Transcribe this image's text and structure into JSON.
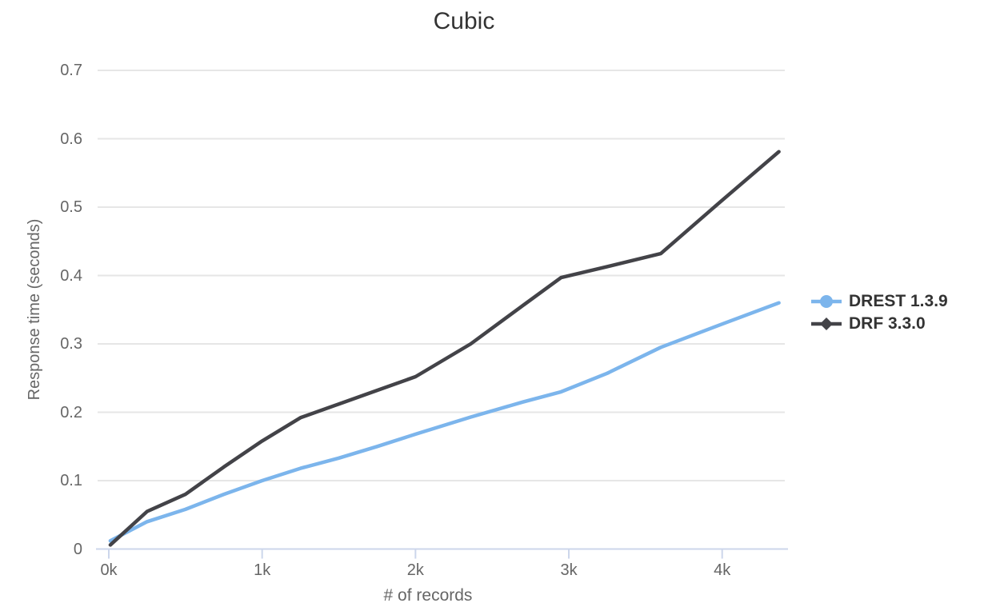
{
  "chart": {
    "title": "Cubic",
    "x_axis": {
      "title": "# of records",
      "ticks": [
        "0k",
        "1k",
        "2k",
        "3k",
        "4k"
      ]
    },
    "y_axis": {
      "title": "Response time (seconds)",
      "ticks": [
        "0",
        "0.1",
        "0.2",
        "0.3",
        "0.4",
        "0.5",
        "0.6",
        "0.7"
      ]
    },
    "legend": [
      {
        "label": "DREST 1.3.9",
        "color": "#7cb5ec",
        "marker": "circle"
      },
      {
        "label": "DRF 3.3.0",
        "color": "#434348",
        "marker": "diamond"
      }
    ]
  },
  "chart_data": {
    "type": "line",
    "title": "Cubic",
    "xlabel": "# of records",
    "ylabel": "Response time (seconds)",
    "xlim": [
      0,
      4420
    ],
    "ylim": [
      0,
      0.7
    ],
    "x_tick_values": [
      0,
      1000,
      2000,
      3000,
      4000
    ],
    "y_tick_values": [
      0,
      0.1,
      0.2,
      0.3,
      0.4,
      0.5,
      0.6,
      0.7
    ],
    "grid": "horizontal",
    "legend_position": "right",
    "x": [
      10,
      250,
      500,
      750,
      1000,
      1250,
      1500,
      1750,
      2000,
      2360,
      2700,
      2950,
      3250,
      3600,
      4000,
      4370
    ],
    "series": [
      {
        "name": "DREST 1.3.9",
        "color": "#7cb5ec",
        "marker": "circle",
        "values": [
          0.012,
          0.04,
          0.058,
          0.08,
          0.1,
          0.118,
          0.133,
          0.15,
          0.168,
          0.193,
          0.215,
          0.23,
          0.257,
          0.295,
          0.329,
          0.36
        ]
      },
      {
        "name": "DRF 3.3.0",
        "color": "#434348",
        "marker": "diamond",
        "values": [
          0.006,
          0.055,
          0.08,
          0.12,
          0.158,
          0.192,
          0.212,
          0.232,
          0.252,
          0.3,
          0.356,
          0.397,
          0.413,
          0.432,
          0.51,
          0.581
        ]
      }
    ]
  },
  "colors": {
    "series_blue": "#7cb5ec",
    "series_dark": "#434348",
    "gridline": "#e6e6e6",
    "axis_line": "#ccd6eb",
    "title_text": "#333333",
    "label_text": "#666666",
    "legend_text": "#333333"
  }
}
